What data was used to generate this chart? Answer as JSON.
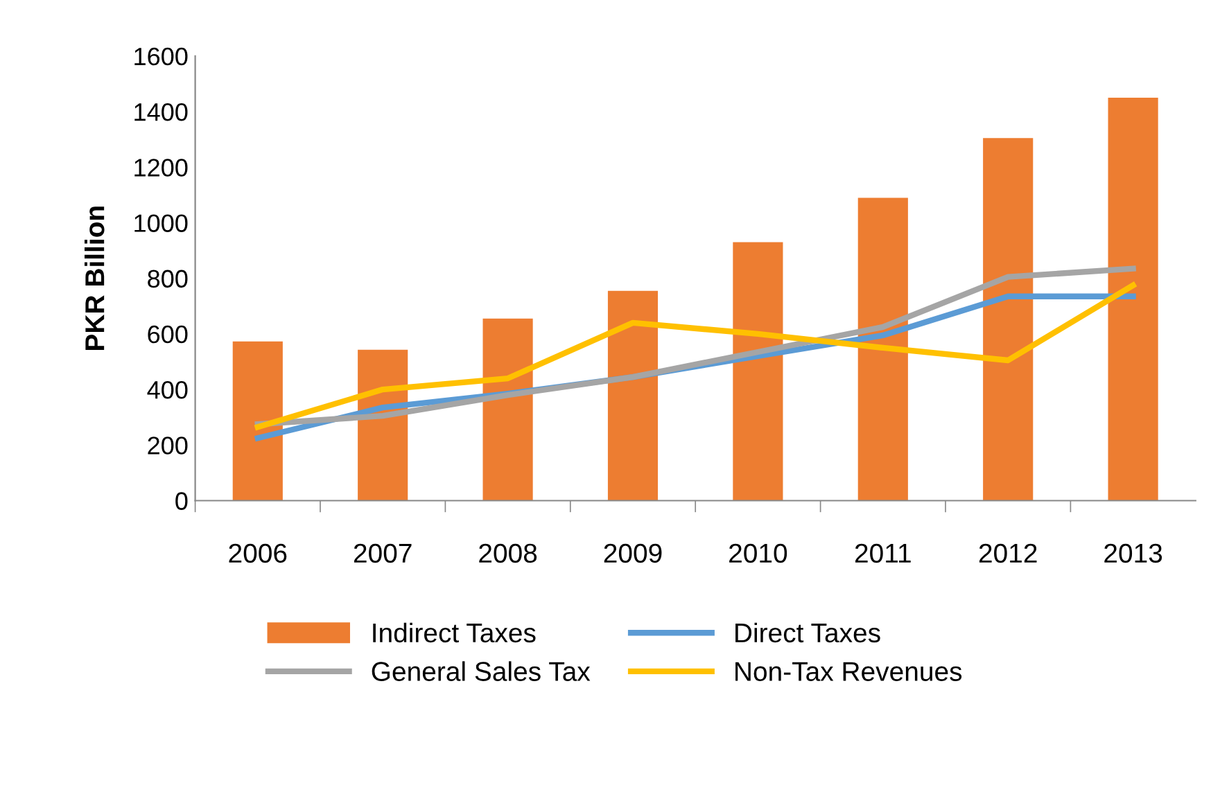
{
  "chart_data": {
    "type": "bar",
    "ylabel": "PKR Billion",
    "categories": [
      "2006",
      "2007",
      "2008",
      "2009",
      "2010",
      "2011",
      "2012",
      "2013"
    ],
    "series": [
      {
        "name": "Indirect Taxes",
        "color": "#ed7d31",
        "values": [
          573,
          543,
          655,
          755,
          930,
          1090,
          1305,
          1450
        ]
      },
      {
        "name": "Direct Taxes",
        "type": "line",
        "color": "#5b9bd5",
        "values": [
          225,
          335,
          385,
          445,
          520,
          595,
          735,
          735
        ]
      },
      {
        "name": "General Sales Tax",
        "type": "line",
        "color": "#a5a5a5",
        "values": [
          275,
          305,
          380,
          445,
          535,
          625,
          805,
          835
        ]
      },
      {
        "name": "Non-Tax Revenues",
        "type": "line",
        "color": "#ffc000",
        "values": [
          265,
          400,
          440,
          640,
          600,
          550,
          505,
          775
        ]
      }
    ],
    "ylim": [
      0,
      1600
    ],
    "yticks": [
      0,
      200,
      400,
      600,
      800,
      1000,
      1200,
      1400,
      1600
    ],
    "grid": false,
    "legend": "bottom",
    "marker": "none",
    "line_style": "solid"
  }
}
